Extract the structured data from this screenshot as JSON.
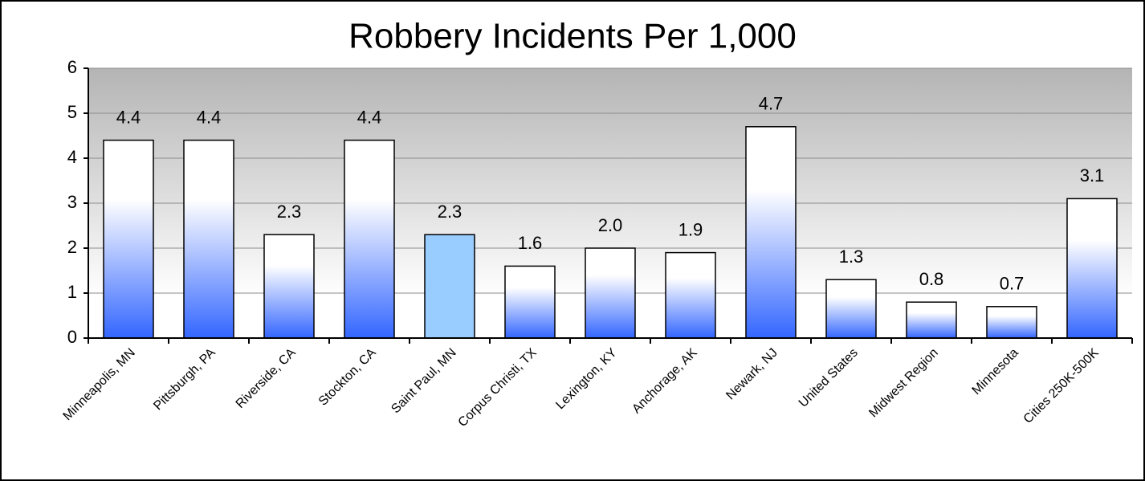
{
  "chart_data": {
    "type": "bar",
    "title": "Robbery Incidents Per 1,000",
    "categories": [
      "Minneapolis, MN",
      "Pittsburgh, PA",
      "Riverside, CA",
      "Stockton, CA",
      "Saint Paul, MN",
      "Corpus Christi, TX",
      "Lexington, KY",
      "Anchorage, AK",
      "Newark, NJ",
      "United States",
      "Midwest Region",
      "Minnesota",
      "Cities 250K-500K"
    ],
    "values": [
      4.4,
      4.4,
      2.3,
      4.4,
      2.3,
      1.6,
      2.0,
      1.9,
      4.7,
      1.3,
      0.8,
      0.7,
      3.1
    ],
    "value_labels": [
      "4.4",
      "4.4",
      "2.3",
      "4.4",
      "2.3",
      "1.6",
      "2.0",
      "1.9",
      "4.7",
      "1.3",
      "0.8",
      "0.7",
      "3.1"
    ],
    "color": "#3366ff",
    "highlight": {
      "index": 4,
      "color": "#99ccff"
    },
    "ylim": [
      0,
      6
    ],
    "yticks": [
      0,
      1,
      2,
      3,
      4,
      5,
      6
    ],
    "grid": true
  }
}
